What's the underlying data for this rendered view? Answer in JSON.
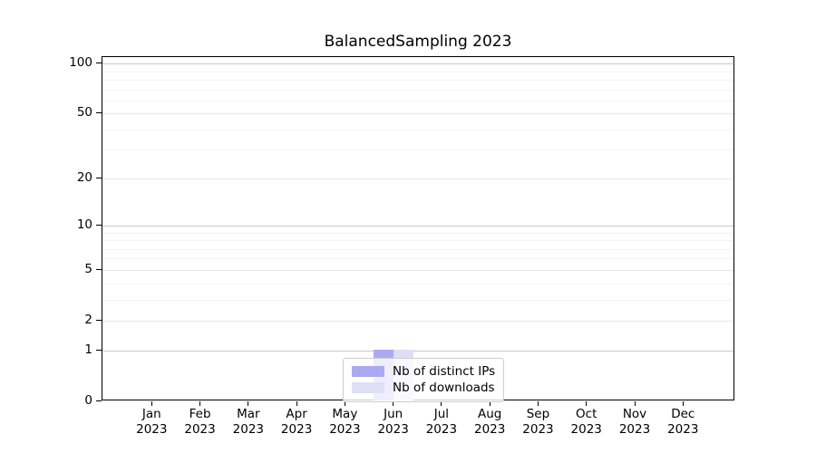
{
  "figure": {
    "background": "#ffffff"
  },
  "chart_data": {
    "type": "bar",
    "title": "BalancedSampling 2023",
    "x": {
      "months": [
        "Jan",
        "Feb",
        "Mar",
        "Apr",
        "May",
        "Jun",
        "Jul",
        "Aug",
        "Sep",
        "Oct",
        "Nov",
        "Dec"
      ],
      "year": "2023"
    },
    "series": [
      {
        "name": "Nb of distinct IPs",
        "color": "#aaaaf0",
        "values": [
          0,
          0,
          0,
          0,
          0,
          1,
          0,
          0,
          0,
          0,
          0,
          0
        ]
      },
      {
        "name": "Nb of downloads",
        "color": "#dedef5",
        "values": [
          0,
          0,
          0,
          0,
          0,
          1,
          0,
          0,
          0,
          0,
          0,
          0
        ]
      }
    ],
    "xlabel": "",
    "ylabel": "",
    "yscale": "log1p",
    "ylim": [
      0,
      110
    ],
    "yticks": [
      0,
      1,
      2,
      5,
      10,
      20,
      50,
      100
    ],
    "emphasized_gridline_values": [
      1,
      10,
      100
    ],
    "minor_gridline_values": [
      3,
      4,
      6,
      7,
      8,
      9,
      30,
      40,
      60,
      70,
      80,
      90
    ],
    "grid": true,
    "legend_position": "lower center"
  },
  "colors": {
    "spine": "#000000",
    "major_grid": "#c8c8c8",
    "labeled_grid": "#e7e7e7",
    "minor_grid": "#f3f3f3",
    "legend_border": "#cccccc"
  }
}
